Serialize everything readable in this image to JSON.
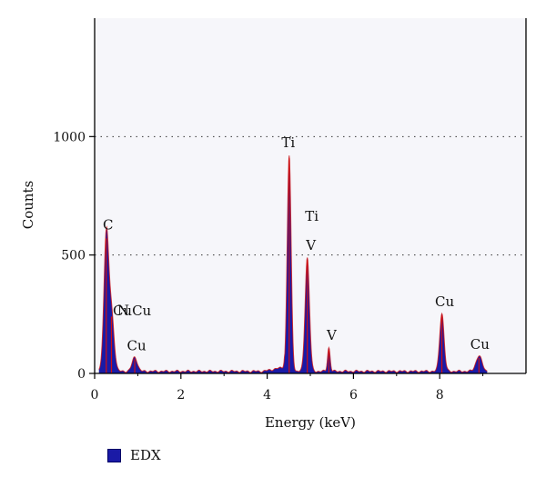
{
  "chart_data": {
    "type": "area",
    "xlabel": "Energy (keV)",
    "ylabel": "Counts",
    "xlim": [
      0,
      10
    ],
    "ylim": [
      0,
      1500
    ],
    "x_ticks": [
      0,
      2,
      4,
      6,
      8
    ],
    "y_ticks": [
      0,
      500,
      1000
    ],
    "grid": "horizontal dotted lines at 500 and 1000",
    "legend_position": "bottom-left",
    "series": [
      {
        "name": "EDX",
        "color": "#1a1aa6",
        "edge_color": "#d01010",
        "peaks": [
          {
            "x": 0.27,
            "y": 570
          },
          {
            "x": 0.39,
            "y": 240
          },
          {
            "x": 0.93,
            "y": 60
          },
          {
            "x": 4.51,
            "y": 910
          },
          {
            "x": 4.93,
            "y": 480
          },
          {
            "x": 5.43,
            "y": 100
          },
          {
            "x": 8.05,
            "y": 245
          },
          {
            "x": 8.91,
            "y": 65
          }
        ]
      }
    ],
    "annotations": [
      {
        "text": "C",
        "x": 0.27,
        "y": 570
      },
      {
        "text": "N",
        "x": 0.39,
        "y": 240
      },
      {
        "text": "CuCu",
        "x": 0.93,
        "y": 130
      },
      {
        "text": "Cu",
        "x": 0.93,
        "y": 60
      },
      {
        "text": "Ti",
        "x": 4.51,
        "y": 910
      },
      {
        "text": "Ti",
        "x": 4.93,
        "y": 540
      },
      {
        "text": "V",
        "x": 4.93,
        "y": 480
      },
      {
        "text": "V",
        "x": 5.43,
        "y": 100
      },
      {
        "text": "Cu",
        "x": 8.05,
        "y": 245
      },
      {
        "text": "Cu",
        "x": 8.91,
        "y": 65
      }
    ]
  }
}
